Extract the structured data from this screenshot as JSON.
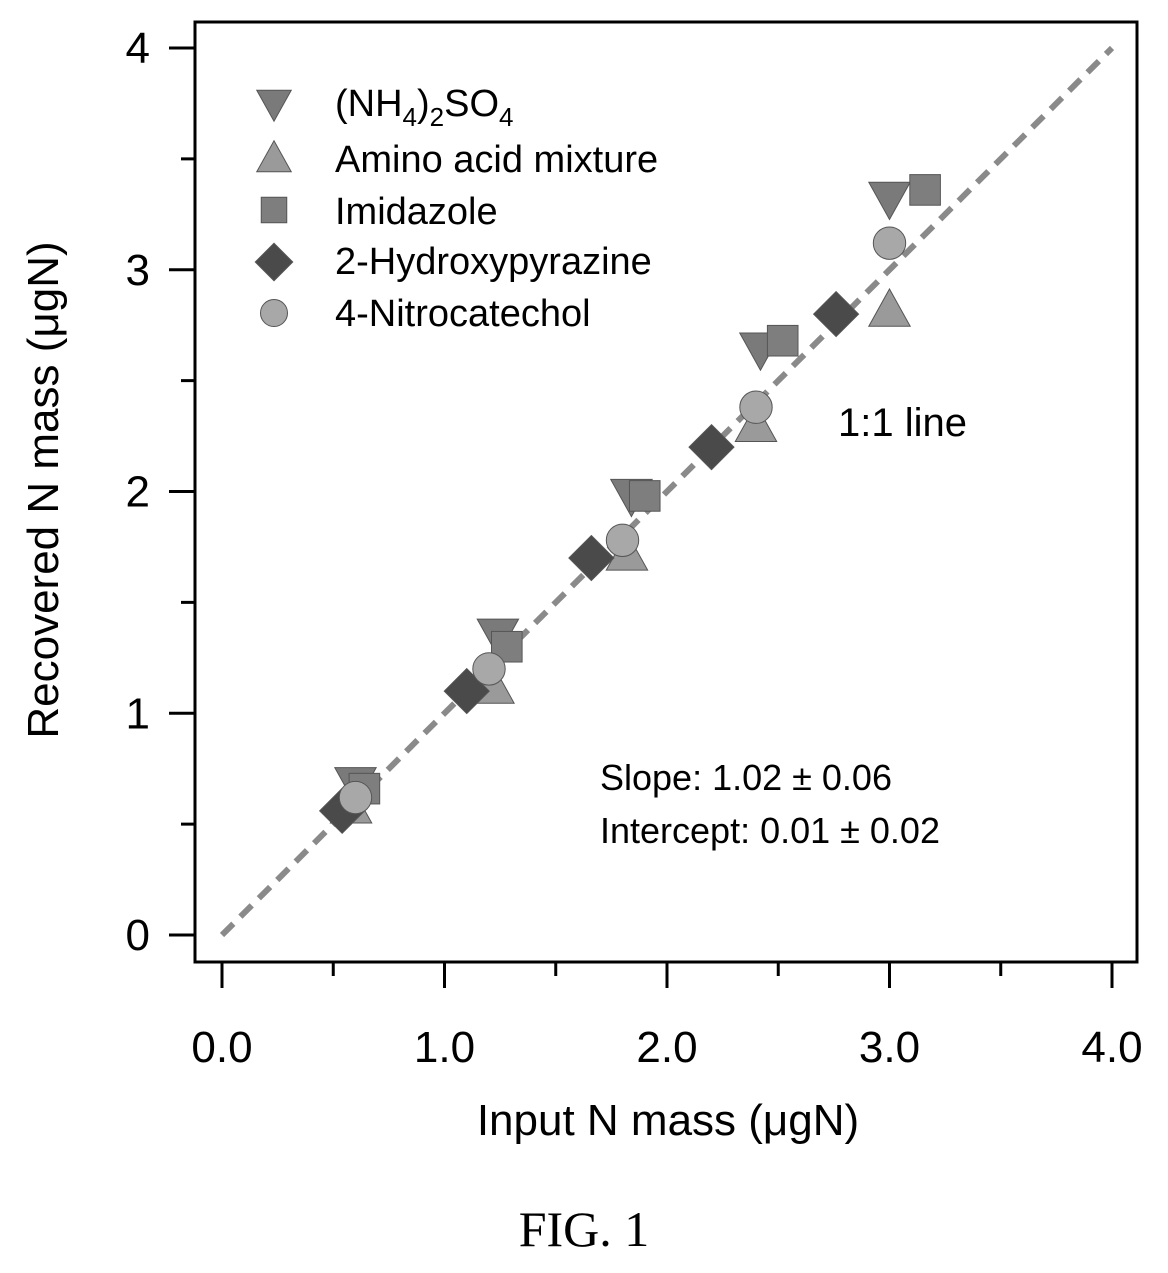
{
  "figure_caption": "FIG. 1",
  "chart_data": {
    "type": "scatter",
    "xlabel": "Input N mass (μgN)",
    "ylabel": "Recovered N mass (μgN)",
    "xlim": [
      0.0,
      4.0
    ],
    "ylim": [
      0,
      4
    ],
    "xticks": [
      "0.0",
      "1.0",
      "2.0",
      "3.0",
      "4.0"
    ],
    "yticks": [
      "0",
      "1",
      "2",
      "3",
      "4"
    ],
    "grid": false,
    "legend_position": "top-left",
    "series": [
      {
        "name": "(NH4)2SO4",
        "marker": "triangle-down",
        "color": "#7a7a7a",
        "points": [
          [
            0.6,
            0.68
          ],
          [
            1.24,
            1.35
          ],
          [
            1.84,
            1.98
          ],
          [
            2.42,
            2.64
          ],
          [
            3.0,
            3.32
          ]
        ]
      },
      {
        "name": "Amino acid mixture",
        "marker": "triangle-up",
        "color": "#9a9a9a",
        "points": [
          [
            0.58,
            0.58
          ],
          [
            1.22,
            1.12
          ],
          [
            1.82,
            1.72
          ],
          [
            2.4,
            2.3
          ],
          [
            3.0,
            2.82
          ]
        ]
      },
      {
        "name": "Imidazole",
        "marker": "square",
        "color": "#7e7e7e",
        "points": [
          [
            0.64,
            0.66
          ],
          [
            1.28,
            1.3
          ],
          [
            1.9,
            1.98
          ],
          [
            2.52,
            2.68
          ],
          [
            3.16,
            3.36
          ]
        ]
      },
      {
        "name": "2-Hydroxypyrazine",
        "marker": "diamond",
        "color": "#4a4a4a",
        "points": [
          [
            0.54,
            0.56
          ],
          [
            1.1,
            1.1
          ],
          [
            1.66,
            1.7
          ],
          [
            2.2,
            2.2
          ],
          [
            2.76,
            2.8
          ]
        ]
      },
      {
        "name": "4-Nitrocatechol",
        "marker": "circle",
        "color": "#a8a8a8",
        "points": [
          [
            0.6,
            0.62
          ],
          [
            1.2,
            1.2
          ],
          [
            1.8,
            1.78
          ],
          [
            2.4,
            2.38
          ],
          [
            3.0,
            3.12
          ]
        ]
      }
    ],
    "reference_line": {
      "label": "1:1 line",
      "x": [
        0,
        4
      ],
      "y": [
        0,
        4
      ]
    },
    "annotations": {
      "slope": "Slope: 1.02 ± 0.06",
      "intercept": "Intercept: 0.01 ± 0.02"
    }
  }
}
